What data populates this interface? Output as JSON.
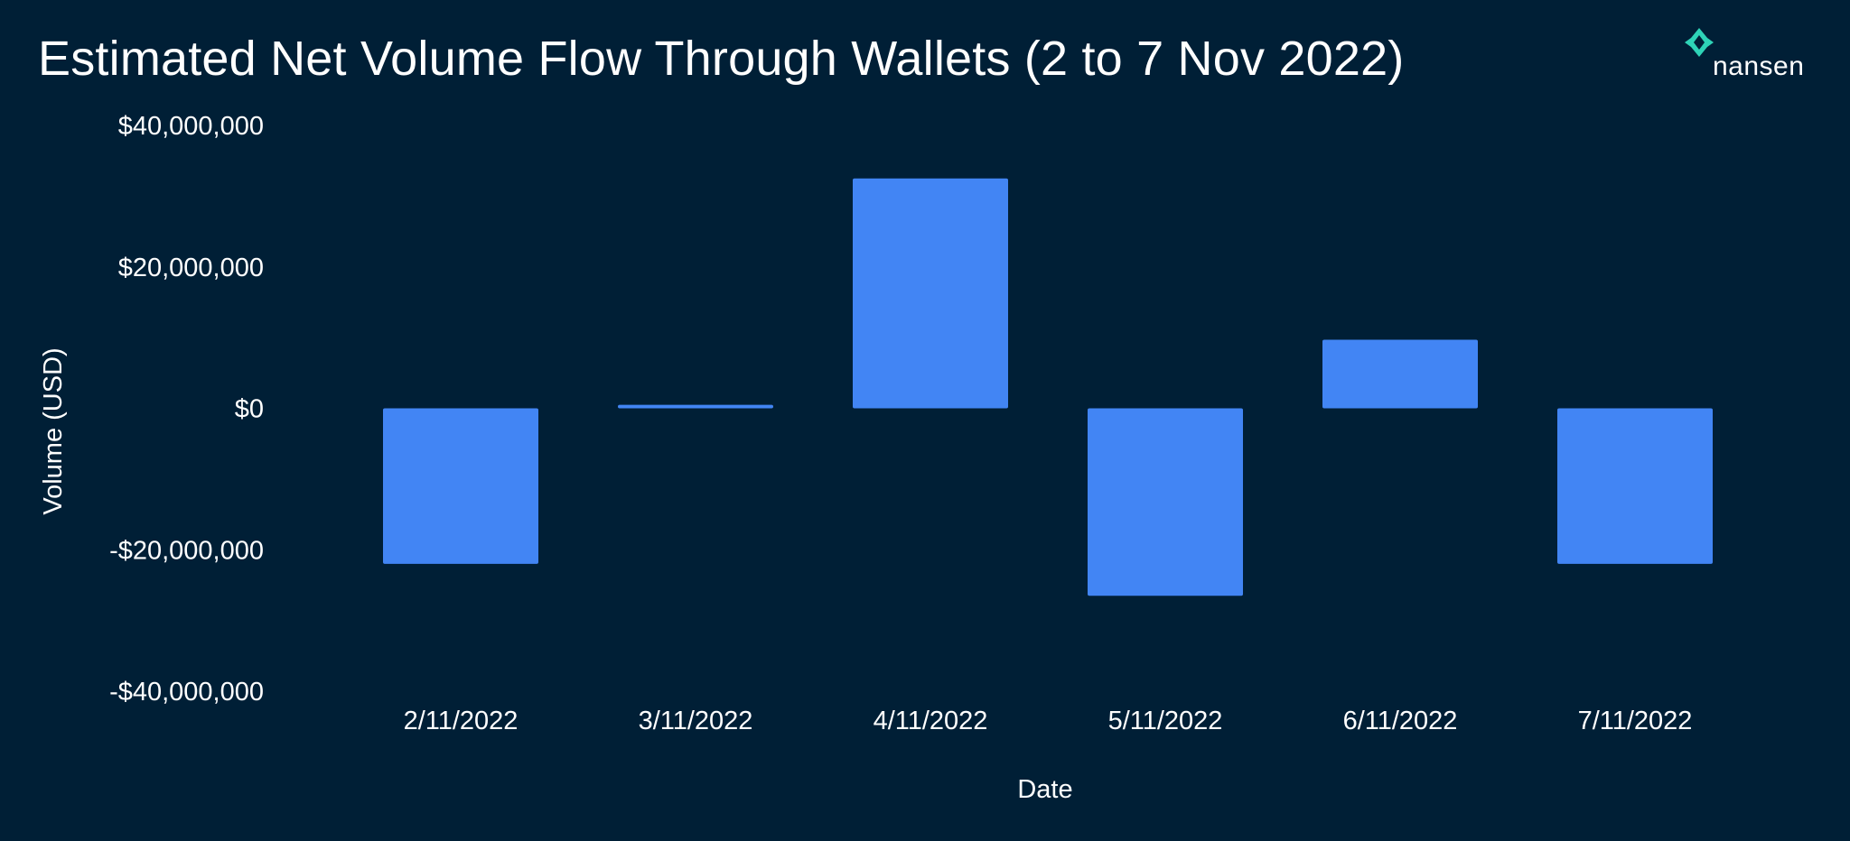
{
  "brand": {
    "name": "nansen",
    "accent_color": "#2ed3b7",
    "background_color": "#001f36"
  },
  "chart_data": {
    "type": "bar",
    "title": "Estimated Net Volume Flow Through Wallets (2 to 7 Nov 2022)",
    "xlabel": "Date",
    "ylabel": "Volume (USD)",
    "categories": [
      "2/11/2022",
      "3/11/2022",
      "4/11/2022",
      "5/11/2022",
      "6/11/2022",
      "7/11/2022"
    ],
    "values": [
      -22000000,
      500000,
      32500000,
      -26500000,
      9700000,
      -22000000
    ],
    "ylim": [
      -40000000,
      40000000
    ],
    "yticks": [
      40000000,
      20000000,
      0,
      -20000000,
      -40000000
    ],
    "ytick_labels": [
      "$40,000,000",
      "$20,000,000",
      "$0",
      "-$20,000,000",
      "-$40,000,000"
    ],
    "bar_color": "#4285f4",
    "grid": false,
    "legend": "none"
  }
}
